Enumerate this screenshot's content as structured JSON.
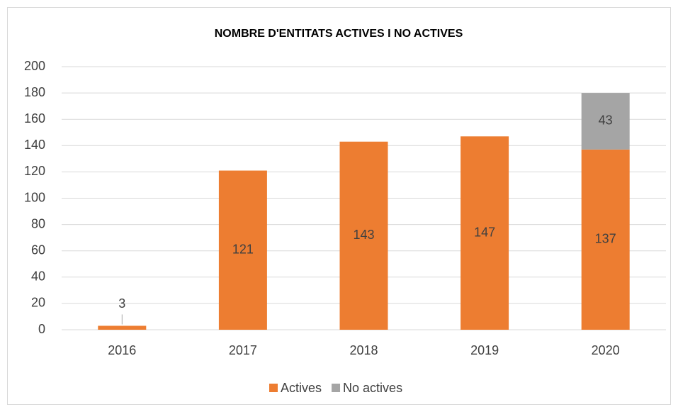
{
  "chart_data": {
    "type": "stacked_bar",
    "title": "NOMBRE D'ENTITATS ACTIVES I NO ACTIVES",
    "categories": [
      "2016",
      "2017",
      "2018",
      "2019",
      "2020"
    ],
    "series": [
      {
        "name": "Actives",
        "color": "#ed7d31",
        "values": [
          3,
          121,
          143,
          147,
          137
        ]
      },
      {
        "name": "No actives",
        "color": "#a5a5a5",
        "values": [
          null,
          null,
          null,
          null,
          43
        ]
      }
    ],
    "ylim": [
      0,
      200
    ],
    "yticks": [
      0,
      20,
      40,
      60,
      80,
      100,
      120,
      140,
      160,
      180,
      200
    ],
    "grid": true,
    "legend": "bottom"
  }
}
